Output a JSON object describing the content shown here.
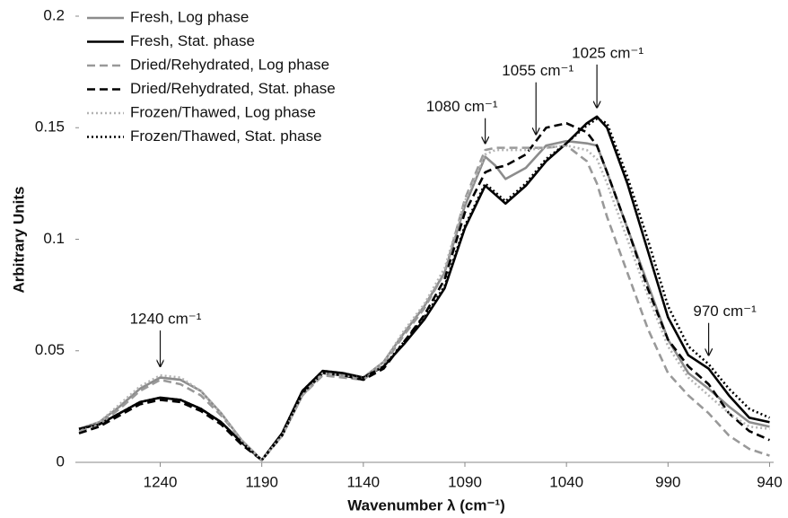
{
  "chart_data": {
    "type": "line",
    "x_label": "Wavenumber λ (cm⁻¹)",
    "y_label": "Arbitrary Units",
    "xlim": [
      1280,
      938
    ],
    "xticks": [
      1240,
      1190,
      1140,
      1090,
      1040,
      990,
      940
    ],
    "ylim": [
      0,
      0.2
    ],
    "yticks": [
      0,
      0.05,
      0.1,
      0.15,
      0.2
    ],
    "x": [
      1280,
      1270,
      1260,
      1250,
      1240,
      1230,
      1220,
      1210,
      1200,
      1190,
      1180,
      1170,
      1160,
      1150,
      1140,
      1130,
      1120,
      1110,
      1100,
      1090,
      1080,
      1075,
      1070,
      1060,
      1050,
      1040,
      1030,
      1025,
      1020,
      1010,
      1000,
      990,
      980,
      970,
      960,
      950,
      940
    ],
    "legend": "upper left",
    "series": [
      {
        "name": "Fresh, Log phase",
        "color": "#8c8c8c",
        "style": "solid",
        "values": [
          0.015,
          0.018,
          0.025,
          0.033,
          0.038,
          0.037,
          0.032,
          0.022,
          0.01,
          0.001,
          0.012,
          0.03,
          0.04,
          0.039,
          0.038,
          0.045,
          0.058,
          0.07,
          0.085,
          0.115,
          0.137,
          0.133,
          0.127,
          0.132,
          0.142,
          0.144,
          0.143,
          0.142,
          0.13,
          0.105,
          0.08,
          0.055,
          0.04,
          0.033,
          0.025,
          0.018,
          0.016
        ]
      },
      {
        "name": "Fresh, Stat. phase",
        "color": "#000000",
        "style": "solid",
        "values": [
          0.015,
          0.017,
          0.022,
          0.027,
          0.029,
          0.028,
          0.024,
          0.018,
          0.009,
          0.001,
          0.013,
          0.032,
          0.041,
          0.04,
          0.038,
          0.043,
          0.053,
          0.064,
          0.078,
          0.105,
          0.124,
          0.12,
          0.116,
          0.124,
          0.135,
          0.143,
          0.152,
          0.155,
          0.15,
          0.125,
          0.095,
          0.065,
          0.048,
          0.042,
          0.03,
          0.02,
          0.018
        ]
      },
      {
        "name": "Dried/Rehydrated, Log phase",
        "color": "#999999",
        "style": "dashed",
        "values": [
          0.014,
          0.017,
          0.024,
          0.032,
          0.037,
          0.035,
          0.03,
          0.021,
          0.01,
          0.001,
          0.012,
          0.03,
          0.039,
          0.038,
          0.037,
          0.044,
          0.057,
          0.069,
          0.085,
          0.118,
          0.14,
          0.141,
          0.141,
          0.141,
          0.141,
          0.142,
          0.135,
          0.125,
          0.11,
          0.085,
          0.06,
          0.04,
          0.03,
          0.022,
          0.012,
          0.006,
          0.003
        ]
      },
      {
        "name": "Dried/Rehydrated, Stat. phase",
        "color": "#000000",
        "style": "dashed",
        "values": [
          0.013,
          0.016,
          0.021,
          0.026,
          0.028,
          0.027,
          0.023,
          0.017,
          0.008,
          0.001,
          0.012,
          0.031,
          0.04,
          0.039,
          0.037,
          0.042,
          0.054,
          0.066,
          0.082,
          0.112,
          0.13,
          0.132,
          0.133,
          0.138,
          0.15,
          0.152,
          0.148,
          0.142,
          0.13,
          0.105,
          0.078,
          0.055,
          0.043,
          0.035,
          0.022,
          0.014,
          0.01
        ]
      },
      {
        "name": "Frozen/Thawed, Log phase",
        "color": "#b3b3b3",
        "style": "dotted",
        "values": [
          0.015,
          0.018,
          0.026,
          0.034,
          0.039,
          0.038,
          0.032,
          0.022,
          0.01,
          0.001,
          0.012,
          0.03,
          0.04,
          0.039,
          0.038,
          0.045,
          0.059,
          0.071,
          0.087,
          0.117,
          0.138,
          0.14,
          0.14,
          0.14,
          0.141,
          0.142,
          0.14,
          0.136,
          0.125,
          0.1,
          0.075,
          0.052,
          0.038,
          0.03,
          0.022,
          0.016,
          0.015
        ]
      },
      {
        "name": "Frozen/Thawed, Stat. phase",
        "color": "#000000",
        "style": "dotted",
        "values": [
          0.015,
          0.017,
          0.022,
          0.027,
          0.029,
          0.028,
          0.024,
          0.018,
          0.009,
          0.001,
          0.013,
          0.032,
          0.041,
          0.04,
          0.038,
          0.043,
          0.054,
          0.065,
          0.079,
          0.106,
          0.125,
          0.121,
          0.117,
          0.125,
          0.136,
          0.143,
          0.151,
          0.154,
          0.152,
          0.128,
          0.1,
          0.07,
          0.052,
          0.044,
          0.033,
          0.024,
          0.02
        ]
      }
    ],
    "annotations": [
      {
        "label": "1240 cm⁻¹",
        "x": 1240,
        "y": 0.043
      },
      {
        "label": "1080 cm⁻¹",
        "x": 1080,
        "y": 0.143
      },
      {
        "label": "1055 cm⁻¹",
        "x": 1055,
        "y": 0.147
      },
      {
        "label": "1025 cm⁻¹",
        "x": 1025,
        "y": 0.159
      },
      {
        "label": "970 cm⁻¹",
        "x": 970,
        "y": 0.048
      }
    ]
  }
}
